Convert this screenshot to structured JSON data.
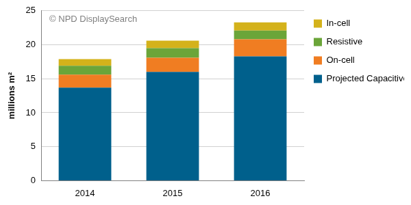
{
  "chart_data": {
    "type": "bar",
    "y_label": "millions m²",
    "annotations": [
      "© NPD DisplaySearch"
    ],
    "categories": [
      "2014",
      "2015",
      "2016"
    ],
    "series": [
      {
        "name": "Projected Capacitive",
        "color": "#00608c",
        "values": [
          13.7,
          16.0,
          18.3
        ]
      },
      {
        "name": "On-cell",
        "color": "#f07d22",
        "values": [
          1.9,
          2.1,
          2.5
        ]
      },
      {
        "name": "Resistive",
        "color": "#6ba539",
        "values": [
          1.3,
          1.4,
          1.3
        ]
      },
      {
        "name": "In-cell",
        "color": "#d4b21b",
        "values": [
          1.0,
          1.1,
          1.2
        ]
      }
    ],
    "ylim": [
      0,
      25
    ],
    "yticks": [
      0,
      5,
      10,
      15,
      20,
      25
    ],
    "grid": true,
    "stacked": true,
    "legend": "right"
  }
}
